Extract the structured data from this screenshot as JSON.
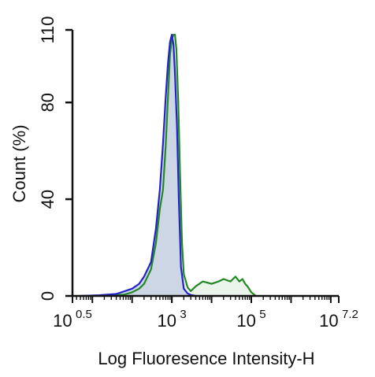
{
  "chart_data": {
    "type": "area",
    "title": "",
    "xlabel": "Log Fluoresence Intensity-H",
    "ylabel": "Count  (%)",
    "x_scale": "log",
    "xlim": [
      3.1623,
      15848931.9
    ],
    "ylim": [
      0,
      110
    ],
    "x_ticks": [
      {
        "value": 3.1623,
        "base": "10",
        "exp": "0.5"
      },
      {
        "value": 1000,
        "base": "10",
        "exp": "3"
      },
      {
        "value": 100000,
        "base": "10",
        "exp": "5"
      },
      {
        "value": 15848931.9,
        "base": "10",
        "exp": "7.2"
      }
    ],
    "y_ticks": [
      "0",
      "40",
      "80",
      "110"
    ],
    "grid": false,
    "series": [
      {
        "color": "#2222cc",
        "fill": "#c8d0e4",
        "x": [
          5,
          15,
          40,
          100,
          150,
          200,
          300,
          400,
          500,
          600,
          700,
          800,
          900,
          1000,
          1100,
          1200,
          1350,
          1500,
          1700,
          2000,
          2500,
          3000,
          4000
        ],
        "y": [
          0,
          0.3,
          0.8,
          3,
          5,
          8,
          14,
          28,
          44,
          63,
          82,
          96,
          105,
          108,
          104,
          92,
          70,
          40,
          12,
          3,
          1,
          0.4,
          0
        ]
      },
      {
        "color": "#228822",
        "fill": "#e8f2e8",
        "x": [
          5,
          20,
          60,
          100,
          150,
          200,
          300,
          400,
          500,
          600,
          700,
          800,
          900,
          1000,
          1100,
          1200,
          1300,
          1450,
          1600,
          1800,
          2000,
          2500,
          3000,
          4000,
          6000,
          10000,
          15000,
          20000,
          30000,
          40000,
          50000,
          60000,
          70000,
          80000,
          100000,
          130000
        ],
        "y": [
          0,
          0.2,
          0.5,
          1.5,
          3,
          5,
          11,
          22,
          36,
          44,
          62,
          82,
          100,
          106,
          108,
          108,
          102,
          80,
          52,
          22,
          9,
          3.5,
          2,
          4,
          6,
          5,
          6,
          7,
          6,
          8,
          6,
          7,
          5,
          4,
          1.5,
          0
        ]
      }
    ]
  }
}
